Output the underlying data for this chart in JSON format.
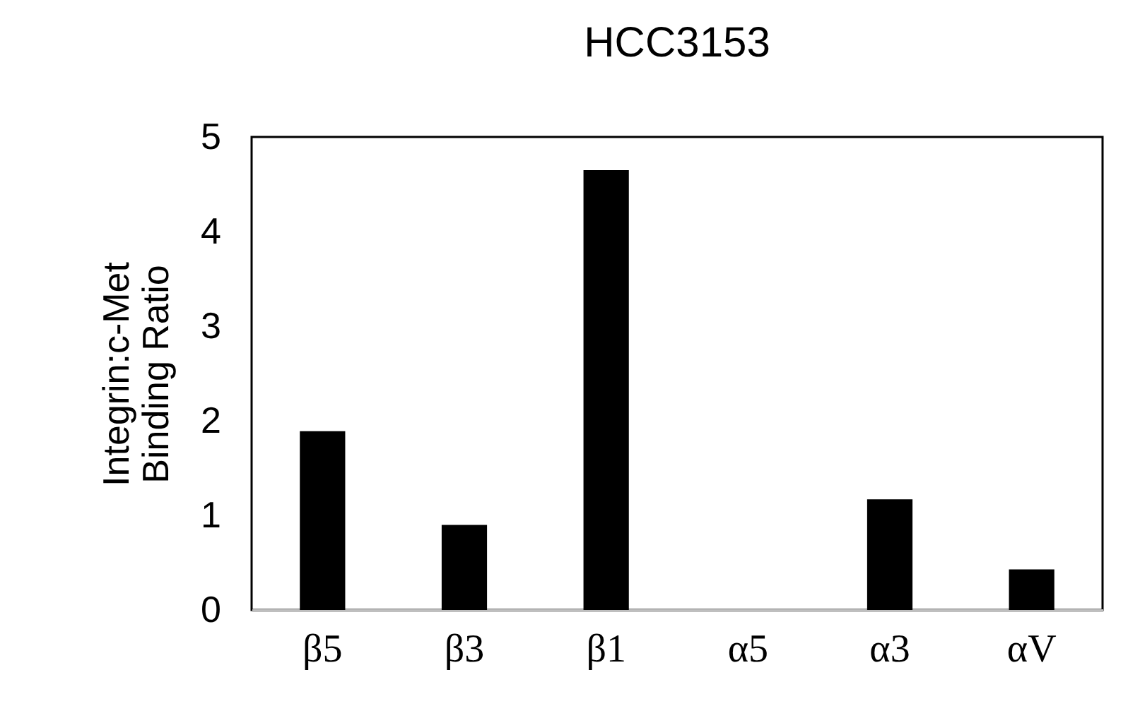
{
  "chart_data": {
    "type": "bar",
    "title": "HCC3153",
    "ylabel": "Integrin:c-Met\nBinding Ratio",
    "categories": [
      "β5",
      "β3",
      "β1",
      "α5",
      "α3",
      "αV"
    ],
    "values": [
      1.89,
      0.9,
      4.65,
      0,
      1.17,
      0.43
    ],
    "color": "#000000",
    "ylim": [
      0,
      5
    ],
    "yticks": [
      0,
      1,
      2,
      3,
      4,
      5
    ],
    "grid": false
  }
}
